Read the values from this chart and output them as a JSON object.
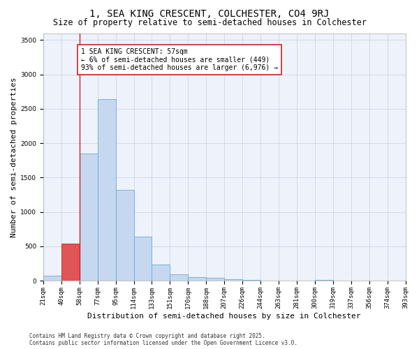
{
  "title": "1, SEA KING CRESCENT, COLCHESTER, CO4 9RJ",
  "subtitle": "Size of property relative to semi-detached houses in Colchester",
  "xlabel": "Distribution of semi-detached houses by size in Colchester",
  "ylabel": "Number of semi-detached properties",
  "bin_edges": [
    "21sqm",
    "40sqm",
    "58sqm",
    "77sqm",
    "95sqm",
    "114sqm",
    "133sqm",
    "151sqm",
    "170sqm",
    "188sqm",
    "207sqm",
    "226sqm",
    "244sqm",
    "263sqm",
    "281sqm",
    "300sqm",
    "319sqm",
    "337sqm",
    "356sqm",
    "374sqm",
    "393sqm"
  ],
  "bar_values": [
    70,
    535,
    1850,
    2640,
    1320,
    640,
    230,
    90,
    55,
    40,
    20,
    10,
    5,
    3,
    2,
    15,
    5,
    3,
    2,
    1
  ],
  "bar_color": "#c5d8f0",
  "bar_edge_color": "#6aaad4",
  "highlight_bin_index": 1,
  "highlight_bar_color": "#e05555",
  "highlight_bar_edge_color": "#cc2222",
  "vline_bin_index": 2,
  "vline_color": "#cc2222",
  "annotation_text": "1 SEA KING CRESCENT: 57sqm\n← 6% of semi-detached houses are smaller (449)\n93% of semi-detached houses are larger (6,976) →",
  "ylim": [
    0,
    3600
  ],
  "yticks": [
    0,
    500,
    1000,
    1500,
    2000,
    2500,
    3000,
    3500
  ],
  "bg_color": "#eef2fb",
  "grid_color": "#c8cfdf",
  "footnote": "Contains HM Land Registry data © Crown copyright and database right 2025.\nContains public sector information licensed under the Open Government Licence v3.0.",
  "title_fontsize": 10,
  "subtitle_fontsize": 8.5,
  "axis_label_fontsize": 8,
  "tick_fontsize": 6.5,
  "annotation_fontsize": 7,
  "footnote_fontsize": 5.5
}
